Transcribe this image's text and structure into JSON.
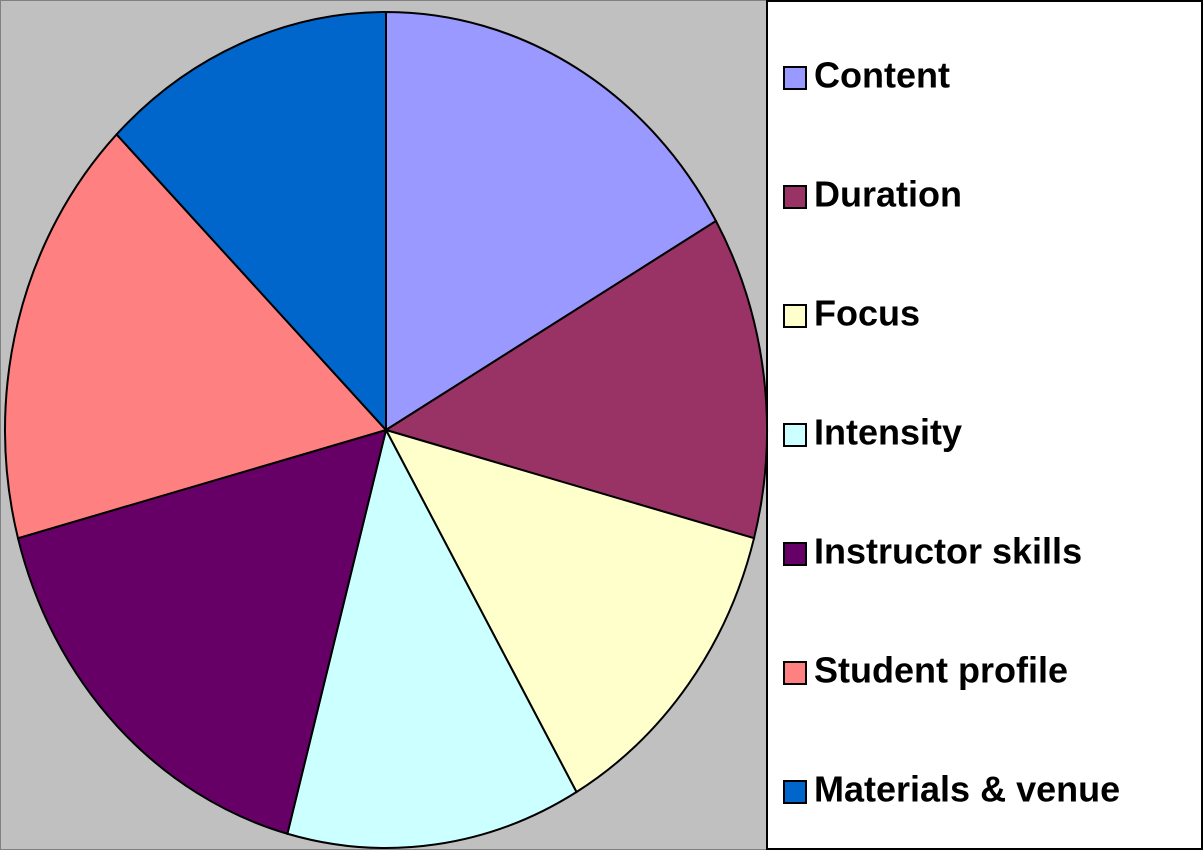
{
  "chart_data": {
    "type": "pie",
    "categories": [
      "Content",
      "Duration",
      "Focus",
      "Intensity",
      "Instructor skills",
      "Student profile",
      "Materials & venue"
    ],
    "values": [
      4,
      3,
      3,
      3,
      4,
      4,
      3
    ],
    "colors": [
      "#9999ff",
      "#993366",
      "#ffffcc",
      "#ccffff",
      "#660066",
      "#ff8080",
      "#0066cc"
    ],
    "legend": "right"
  }
}
